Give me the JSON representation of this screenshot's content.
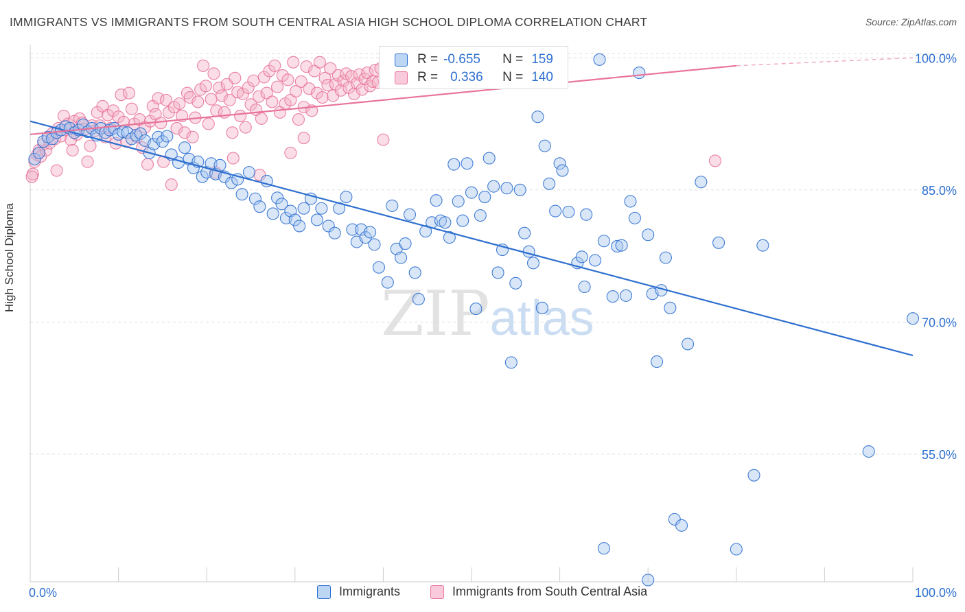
{
  "title": "IMMIGRANTS VS IMMIGRANTS FROM SOUTH CENTRAL ASIA HIGH SCHOOL DIPLOMA CORRELATION CHART",
  "source": "Source: ZipAtlas.com",
  "watermark": {
    "zip": "ZIP",
    "atlas": "atlas"
  },
  "colors": {
    "blue": "#2d6fcf",
    "blue_fill": "#a8c8f0",
    "pink": "#e8739a",
    "pink_fill": "#f5b3c8",
    "grid": "#dddddd"
  },
  "legend": {
    "rows": [
      {
        "r_label": "R =",
        "r_value": "-0.655",
        "n_label": "N =",
        "n_value": "159"
      },
      {
        "r_label": "R =",
        "r_value": "0.336",
        "n_label": "N =",
        "n_value": "140"
      }
    ]
  },
  "bottom_legend": {
    "series_a": "Immigrants",
    "series_b": "Immigrants from South Central Asia"
  },
  "chart_data": {
    "type": "scatter",
    "title": "IMMIGRANTS VS IMMIGRANTS FROM SOUTH CENTRAL ASIA HIGH SCHOOL DIPLOMA CORRELATION CHART",
    "ylabel": "High School Diploma",
    "xlabel": "",
    "xlim": [
      0,
      100
    ],
    "ylim": [
      40.5,
      101.5
    ],
    "x_tick_labels": [
      "0.0%",
      "100.0%"
    ],
    "y_ticks": [
      55,
      70,
      85,
      100
    ],
    "y_tick_labels": [
      "55.0%",
      "70.0%",
      "85.0%",
      "100.0%"
    ],
    "grid": true,
    "series": [
      {
        "name": "Immigrants",
        "color": "#2d6fcf",
        "r": -0.655,
        "n": 159,
        "trend": {
          "x": [
            0,
            100
          ],
          "y": [
            92.8,
            66.2
          ]
        },
        "points": [
          [
            0.5,
            88.5
          ],
          [
            1.0,
            89.2
          ],
          [
            1.5,
            90.5
          ],
          [
            2.0,
            91.0
          ],
          [
            2.5,
            90.8
          ],
          [
            3.0,
            91.5
          ],
          [
            3.5,
            91.8
          ],
          [
            4.0,
            92.2
          ],
          [
            4.5,
            92.0
          ],
          [
            5.0,
            91.5
          ],
          [
            5.5,
            91.8
          ],
          [
            6.0,
            92.4
          ],
          [
            6.5,
            91.6
          ],
          [
            7.0,
            92.0
          ],
          [
            7.5,
            91.2
          ],
          [
            8.0,
            92.0
          ],
          [
            8.5,
            91.5
          ],
          [
            9.0,
            91.8
          ],
          [
            9.5,
            92.0
          ],
          [
            10.0,
            91.3
          ],
          [
            10.5,
            91.6
          ],
          [
            11.0,
            91.5
          ],
          [
            11.5,
            90.8
          ],
          [
            12.0,
            91.2
          ],
          [
            12.5,
            91.4
          ],
          [
            13.0,
            90.6
          ],
          [
            13.5,
            89.2
          ],
          [
            14.0,
            90.2
          ],
          [
            14.5,
            91.0
          ],
          [
            15.0,
            90.5
          ],
          [
            15.5,
            91.1
          ],
          [
            16.0,
            89.0
          ],
          [
            16.8,
            88.1
          ],
          [
            17.5,
            89.8
          ],
          [
            18.0,
            88.5
          ],
          [
            18.5,
            87.5
          ],
          [
            19.0,
            88.2
          ],
          [
            19.5,
            86.5
          ],
          [
            20.0,
            87.0
          ],
          [
            20.5,
            88.0
          ],
          [
            21.0,
            86.8
          ],
          [
            21.5,
            87.8
          ],
          [
            22.0,
            86.5
          ],
          [
            22.8,
            85.8
          ],
          [
            23.5,
            86.2
          ],
          [
            24.0,
            84.5
          ],
          [
            24.8,
            87.0
          ],
          [
            25.5,
            84.0
          ],
          [
            26.0,
            83.1
          ],
          [
            26.8,
            86.0
          ],
          [
            27.5,
            82.3
          ],
          [
            28.0,
            84.1
          ],
          [
            28.5,
            83.4
          ],
          [
            29.0,
            81.8
          ],
          [
            29.5,
            82.6
          ],
          [
            30.0,
            81.6
          ],
          [
            30.5,
            80.9
          ],
          [
            31.0,
            82.9
          ],
          [
            31.8,
            84.0
          ],
          [
            32.5,
            81.6
          ],
          [
            33.0,
            82.9
          ],
          [
            33.8,
            80.9
          ],
          [
            34.5,
            80.1
          ],
          [
            35.0,
            82.9
          ],
          [
            35.8,
            84.2
          ],
          [
            36.5,
            80.5
          ],
          [
            37.0,
            79.1
          ],
          [
            37.5,
            80.5
          ],
          [
            38.0,
            79.6
          ],
          [
            38.5,
            80.2
          ],
          [
            39.0,
            78.8
          ],
          [
            39.5,
            76.2
          ],
          [
            40.5,
            74.5
          ],
          [
            41.0,
            83.2
          ],
          [
            41.5,
            78.3
          ],
          [
            42.0,
            77.3
          ],
          [
            42.5,
            78.9
          ],
          [
            43.0,
            82.2
          ],
          [
            43.6,
            75.6
          ],
          [
            44.0,
            72.6
          ],
          [
            44.8,
            80.3
          ],
          [
            45.5,
            81.3
          ],
          [
            46.0,
            83.8
          ],
          [
            46.5,
            81.5
          ],
          [
            47.0,
            81.3
          ],
          [
            47.5,
            79.6
          ],
          [
            48.0,
            87.9
          ],
          [
            48.5,
            83.7
          ],
          [
            49.0,
            81.5
          ],
          [
            49.5,
            88.0
          ],
          [
            50.0,
            84.7
          ],
          [
            50.5,
            71.5
          ],
          [
            51.0,
            82.1
          ],
          [
            51.5,
            84.2
          ],
          [
            52.0,
            88.6
          ],
          [
            52.5,
            85.4
          ],
          [
            53.0,
            75.6
          ],
          [
            53.5,
            78.2
          ],
          [
            54.0,
            85.2
          ],
          [
            54.5,
            65.4
          ],
          [
            55.0,
            74.4
          ],
          [
            55.5,
            85.0
          ],
          [
            56.0,
            80.1
          ],
          [
            56.5,
            78.0
          ],
          [
            57.0,
            76.7
          ],
          [
            57.5,
            93.3
          ],
          [
            58.0,
            71.6
          ],
          [
            58.3,
            90.0
          ],
          [
            58.8,
            85.7
          ],
          [
            59.5,
            82.6
          ],
          [
            60.0,
            88.0
          ],
          [
            60.3,
            87.2
          ],
          [
            61.0,
            82.5
          ],
          [
            62.0,
            76.7
          ],
          [
            62.5,
            77.4
          ],
          [
            62.8,
            74.0
          ],
          [
            63.0,
            82.2
          ],
          [
            64.0,
            77.0
          ],
          [
            64.5,
            99.8
          ],
          [
            65.0,
            79.2
          ],
          [
            66.0,
            72.9
          ],
          [
            66.5,
            78.6
          ],
          [
            67.0,
            78.7
          ],
          [
            67.5,
            73.0
          ],
          [
            68.0,
            83.7
          ],
          [
            68.5,
            81.8
          ],
          [
            69.0,
            98.3
          ],
          [
            70.0,
            79.9
          ],
          [
            70.5,
            73.2
          ],
          [
            71.0,
            65.5
          ],
          [
            71.5,
            73.6
          ],
          [
            72.0,
            77.3
          ],
          [
            72.5,
            71.6
          ],
          [
            73.0,
            47.6
          ],
          [
            73.8,
            46.9
          ],
          [
            74.5,
            67.5
          ],
          [
            76.0,
            85.9
          ],
          [
            78.0,
            79.0
          ],
          [
            80.0,
            44.2
          ],
          [
            82.0,
            52.6
          ],
          [
            83.0,
            78.7
          ],
          [
            95.0,
            55.3
          ],
          [
            100.0,
            70.4
          ],
          [
            65.0,
            44.3
          ],
          [
            70.0,
            40.7
          ]
        ]
      },
      {
        "name": "Immigrants from South Central Asia",
        "color": "#e8739a",
        "r": 0.336,
        "n": 140,
        "trend": {
          "x": [
            0,
            80
          ],
          "y": [
            91.3,
            99.1
          ]
        },
        "trend_dashed": {
          "x": [
            80,
            100
          ],
          "y": [
            99.1,
            100.0
          ]
        },
        "points": [
          [
            0.3,
            86.8
          ],
          [
            0.5,
            88.2
          ],
          [
            0.8,
            89.0
          ],
          [
            1.0,
            89.5
          ],
          [
            1.2,
            88.8
          ],
          [
            1.5,
            90.2
          ],
          [
            1.8,
            89.5
          ],
          [
            2.0,
            91.0
          ],
          [
            2.2,
            90.3
          ],
          [
            2.5,
            91.4
          ],
          [
            2.8,
            90.8
          ],
          [
            3.0,
            87.2
          ],
          [
            3.2,
            92.0
          ],
          [
            3.5,
            91.1
          ],
          [
            3.8,
            93.4
          ],
          [
            4.0,
            91.8
          ],
          [
            4.3,
            92.5
          ],
          [
            4.6,
            90.7
          ],
          [
            4.8,
            89.5
          ],
          [
            5.0,
            92.8
          ],
          [
            5.3,
            91.3
          ],
          [
            5.6,
            93.1
          ],
          [
            5.9,
            92.6
          ],
          [
            6.2,
            91.9
          ],
          [
            6.5,
            88.2
          ],
          [
            6.8,
            90.0
          ],
          [
            7.0,
            92.3
          ],
          [
            7.3,
            91.7
          ],
          [
            7.6,
            93.8
          ],
          [
            7.9,
            92.3
          ],
          [
            8.2,
            94.5
          ],
          [
            8.5,
            91.0
          ],
          [
            8.8,
            93.5
          ],
          [
            9.1,
            92.0
          ],
          [
            9.4,
            94.0
          ],
          [
            9.7,
            90.3
          ],
          [
            10.0,
            93.3
          ],
          [
            10.3,
            95.8
          ],
          [
            10.6,
            92.7
          ],
          [
            10.9,
            90.5
          ],
          [
            11.2,
            96.0
          ],
          [
            11.5,
            94.2
          ],
          [
            11.8,
            92.5
          ],
          [
            12.1,
            91.0
          ],
          [
            12.4,
            93.0
          ],
          [
            12.7,
            89.8
          ],
          [
            13.0,
            92.1
          ],
          [
            13.3,
            87.9
          ],
          [
            13.6,
            92.8
          ],
          [
            13.9,
            94.5
          ],
          [
            14.2,
            93.6
          ],
          [
            14.5,
            95.4
          ],
          [
            14.8,
            92.6
          ],
          [
            15.1,
            88.2
          ],
          [
            15.4,
            95.2
          ],
          [
            15.7,
            93.8
          ],
          [
            16.0,
            85.6
          ],
          [
            16.3,
            94.4
          ],
          [
            16.6,
            92.0
          ],
          [
            16.9,
            94.8
          ],
          [
            17.2,
            93.4
          ],
          [
            17.5,
            91.5
          ],
          [
            17.8,
            96.0
          ],
          [
            18.1,
            95.5
          ],
          [
            18.4,
            91.0
          ],
          [
            18.7,
            93.2
          ],
          [
            19.0,
            95.0
          ],
          [
            19.3,
            96.4
          ],
          [
            19.6,
            99.1
          ],
          [
            19.9,
            96.8
          ],
          [
            20.2,
            92.5
          ],
          [
            20.5,
            95.3
          ],
          [
            20.8,
            98.2
          ],
          [
            21.1,
            94.0
          ],
          [
            21.4,
            96.6
          ],
          [
            21.7,
            95.7
          ],
          [
            22.0,
            93.8
          ],
          [
            22.3,
            97.0
          ],
          [
            22.6,
            95.2
          ],
          [
            22.9,
            91.5
          ],
          [
            23.2,
            97.7
          ],
          [
            23.5,
            96.1
          ],
          [
            23.8,
            93.4
          ],
          [
            24.1,
            95.9
          ],
          [
            24.4,
            92.1
          ],
          [
            24.7,
            96.6
          ],
          [
            25.0,
            94.7
          ],
          [
            25.3,
            97.4
          ],
          [
            25.6,
            94.1
          ],
          [
            25.9,
            95.6
          ],
          [
            26.2,
            93.1
          ],
          [
            26.5,
            97.8
          ],
          [
            26.8,
            96.0
          ],
          [
            27.1,
            98.5
          ],
          [
            27.4,
            95.0
          ],
          [
            27.7,
            99.1
          ],
          [
            28.0,
            96.7
          ],
          [
            28.3,
            93.8
          ],
          [
            28.6,
            98.0
          ],
          [
            28.9,
            94.8
          ],
          [
            29.2,
            97.5
          ],
          [
            29.5,
            95.2
          ],
          [
            29.8,
            99.5
          ],
          [
            30.1,
            96.2
          ],
          [
            30.4,
            93.0
          ],
          [
            30.7,
            97.3
          ],
          [
            31.0,
            94.4
          ],
          [
            31.3,
            99.0
          ],
          [
            31.6,
            96.5
          ],
          [
            31.9,
            94.0
          ],
          [
            32.2,
            98.5
          ],
          [
            32.5,
            96.0
          ],
          [
            32.8,
            99.5
          ],
          [
            33.1,
            95.5
          ],
          [
            33.4,
            97.7
          ],
          [
            33.7,
            96.9
          ],
          [
            34.0,
            98.8
          ],
          [
            34.3,
            95.7
          ],
          [
            34.6,
            97.0
          ],
          [
            34.9,
            98.0
          ],
          [
            35.2,
            96.3
          ],
          [
            35.5,
            97.4
          ],
          [
            35.8,
            98.2
          ],
          [
            36.1,
            96.6
          ],
          [
            36.4,
            97.9
          ],
          [
            36.7,
            95.9
          ],
          [
            37.0,
            97.1
          ],
          [
            37.3,
            98.1
          ],
          [
            37.6,
            96.4
          ],
          [
            37.9,
            97.6
          ],
          [
            38.2,
            98.3
          ],
          [
            38.5,
            96.8
          ],
          [
            38.8,
            97.3
          ],
          [
            39.1,
            98.6
          ],
          [
            39.4,
            97.2
          ],
          [
            39.7,
            98.8
          ],
          [
            40.0,
            90.7
          ],
          [
            21.0,
            87.0
          ],
          [
            26.0,
            86.7
          ],
          [
            23.0,
            88.6
          ],
          [
            31.0,
            90.9
          ],
          [
            29.5,
            89.2
          ],
          [
            77.6,
            88.3
          ],
          [
            0.2,
            86.5
          ]
        ]
      }
    ]
  }
}
